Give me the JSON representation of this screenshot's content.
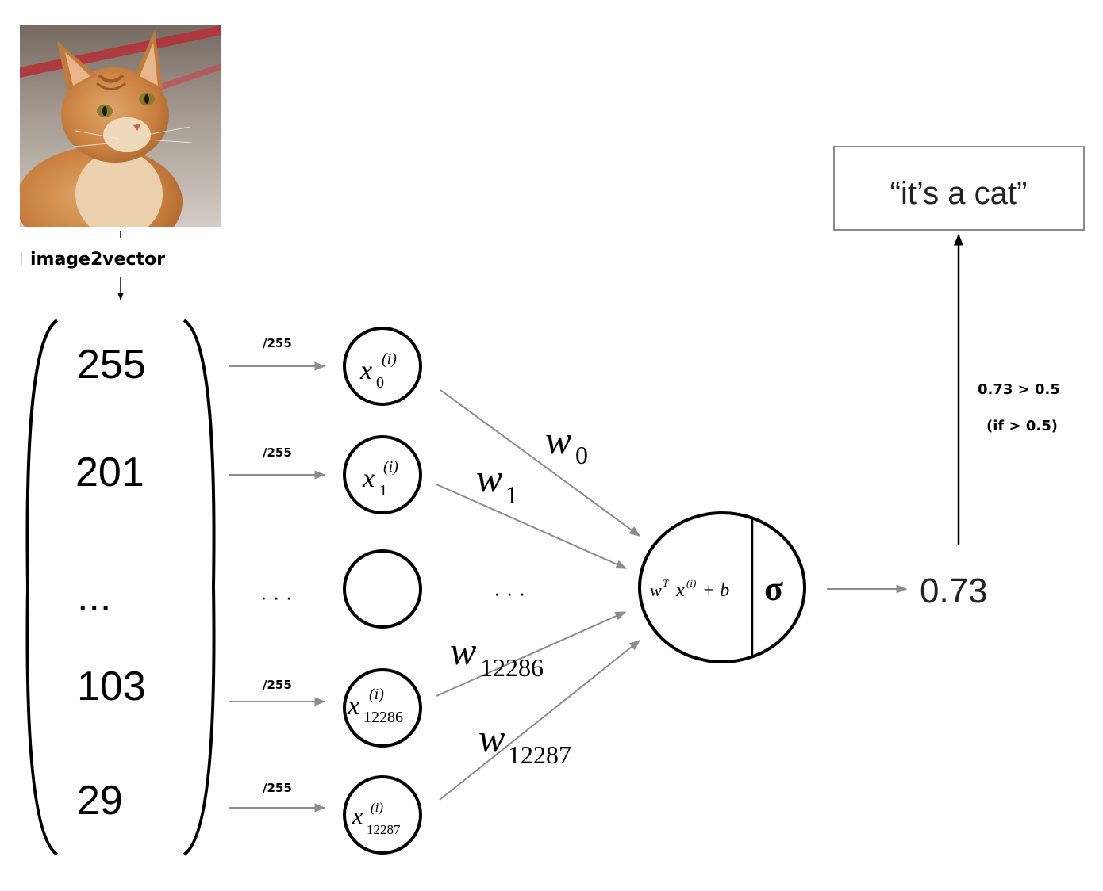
{
  "image": {
    "subject": "orange-tabby-cat-photo",
    "colors": {
      "background_top": "#7d6f63",
      "background_bottom": "#cdc6bf",
      "stripe": "#b3323a",
      "fur": "#c97f3f",
      "fur_light": "#e8c49b",
      "eye": "#8a7a2c"
    }
  },
  "conversion_label": "image2vector",
  "vector": {
    "entries": [
      "255",
      "201",
      "...",
      "103",
      "29"
    ]
  },
  "normalize_label": "/255",
  "inputs": [
    {
      "sub": "0"
    },
    {
      "sub": "1"
    },
    {
      "sub": ""
    },
    {
      "sub": "12286"
    },
    {
      "sub": "12287"
    }
  ],
  "input_symbol": "x",
  "input_superscript": "(i)",
  "ellipsis": "· · ·",
  "weights": [
    {
      "symbol": "w",
      "sub": "0"
    },
    {
      "symbol": "w",
      "sub": "1"
    },
    {
      "symbol": "w",
      "sub": "12286"
    },
    {
      "symbol": "w",
      "sub": "12287"
    }
  ],
  "neuron": {
    "linear": {
      "w": "w",
      "T": "T",
      "x": "x",
      "sup": "(i)",
      "rest": " + b"
    },
    "activation": "σ"
  },
  "output_value": "0.73",
  "threshold": {
    "comparison": "0.73 > 0.5",
    "condition": "(if > 0.5)"
  },
  "result_label": "“it’s a cat”",
  "colors": {
    "stroke": "#000000",
    "arrow": "#8c8c8c",
    "box_border": "#8a8a8a"
  }
}
